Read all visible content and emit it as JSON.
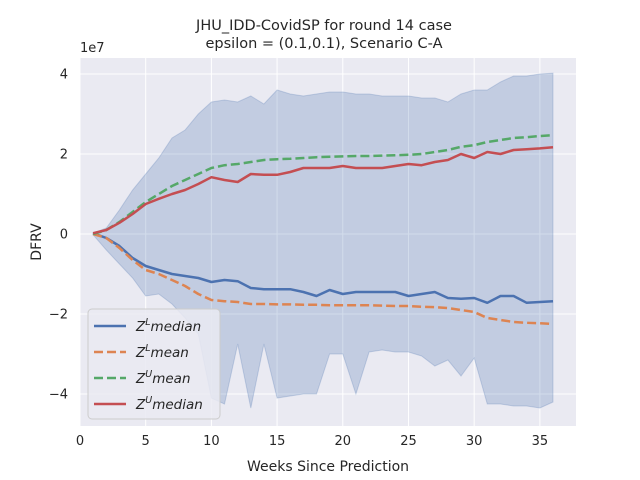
{
  "chart_data": {
    "type": "line",
    "title": "JHU_IDD-CovidSP for round 14 case",
    "subtitle": "epsilon = (0.1,0.1), Scenario C-A",
    "xlabel": "Weeks Since Prediction",
    "ylabel": "DFRV",
    "y_scale_label": "1e7",
    "xlim": [
      0,
      37.75
    ],
    "ylim": [
      -4.8,
      4.4
    ],
    "x_ticks": [
      0,
      5,
      10,
      15,
      20,
      25,
      30,
      35
    ],
    "y_ticks": [
      -4,
      -2,
      0,
      2,
      4
    ],
    "y_tick_labels": [
      "−4",
      "−2",
      "0",
      "2",
      "4"
    ],
    "grid": true,
    "legend_position": "lower-left",
    "x": [
      1,
      2,
      3,
      4,
      5,
      6,
      7,
      8,
      9,
      10,
      11,
      12,
      13,
      14,
      15,
      16,
      17,
      18,
      19,
      20,
      21,
      22,
      23,
      24,
      25,
      26,
      27,
      28,
      29,
      30,
      31,
      32,
      33,
      34,
      35,
      36
    ],
    "band": {
      "color": "#4c72b0",
      "upper": [
        0.02,
        0.15,
        0.6,
        1.1,
        1.5,
        1.9,
        2.4,
        2.6,
        3.0,
        3.3,
        3.35,
        3.3,
        3.45,
        3.25,
        3.6,
        3.5,
        3.45,
        3.5,
        3.55,
        3.55,
        3.5,
        3.5,
        3.45,
        3.45,
        3.45,
        3.4,
        3.4,
        3.3,
        3.5,
        3.6,
        3.6,
        3.8,
        3.95,
        3.95,
        4.0,
        4.02
      ],
      "lower": [
        -0.02,
        -0.4,
        -0.75,
        -1.1,
        -1.55,
        -1.5,
        -1.75,
        -2.1,
        -2.5,
        -4.1,
        -4.25,
        -2.75,
        -4.35,
        -2.75,
        -4.1,
        -4.05,
        -4.0,
        -4.0,
        -3.0,
        -3.0,
        -4.0,
        -2.95,
        -2.9,
        -2.95,
        -2.95,
        -3.05,
        -3.3,
        -3.15,
        -3.55,
        -3.1,
        -4.25,
        -4.25,
        -4.3,
        -4.3,
        -4.35,
        -4.2
      ]
    },
    "series": [
      {
        "name": "Z^L median",
        "name_base": "Z",
        "name_sup": "L",
        "name_rest": "median",
        "color": "#4c72b0",
        "dash": "solid",
        "values": [
          0.02,
          -0.1,
          -0.3,
          -0.6,
          -0.8,
          -0.9,
          -1.0,
          -1.05,
          -1.1,
          -1.2,
          -1.15,
          -1.18,
          -1.35,
          -1.38,
          -1.38,
          -1.38,
          -1.45,
          -1.55,
          -1.4,
          -1.5,
          -1.45,
          -1.45,
          -1.45,
          -1.45,
          -1.55,
          -1.5,
          -1.45,
          -1.6,
          -1.62,
          -1.6,
          -1.72,
          -1.55,
          -1.55,
          -1.72,
          -1.7,
          -1.68
        ]
      },
      {
        "name": "Z^L mean",
        "name_base": "Z",
        "name_sup": "L",
        "name_rest": "mean",
        "color": "#dd8452",
        "dash": "dashed",
        "values": [
          0.0,
          -0.1,
          -0.35,
          -0.65,
          -0.9,
          -1.0,
          -1.15,
          -1.3,
          -1.5,
          -1.65,
          -1.68,
          -1.7,
          -1.75,
          -1.75,
          -1.76,
          -1.76,
          -1.77,
          -1.77,
          -1.78,
          -1.78,
          -1.78,
          -1.78,
          -1.79,
          -1.8,
          -1.8,
          -1.82,
          -1.83,
          -1.85,
          -1.9,
          -1.95,
          -2.1,
          -2.15,
          -2.2,
          -2.22,
          -2.23,
          -2.25
        ]
      },
      {
        "name": "Z^U mean",
        "name_base": "Z",
        "name_sup": "U",
        "name_rest": "mean",
        "color": "#55a868",
        "dash": "dashed",
        "values": [
          0.0,
          0.1,
          0.3,
          0.55,
          0.8,
          1.0,
          1.2,
          1.35,
          1.5,
          1.65,
          1.72,
          1.75,
          1.8,
          1.85,
          1.87,
          1.88,
          1.9,
          1.92,
          1.93,
          1.94,
          1.95,
          1.95,
          1.96,
          1.97,
          1.98,
          2.0,
          2.05,
          2.1,
          2.18,
          2.22,
          2.3,
          2.35,
          2.4,
          2.42,
          2.45,
          2.47
        ]
      },
      {
        "name": "Z^U median",
        "name_base": "Z",
        "name_sup": "U",
        "name_rest": "median",
        "color": "#c44e52",
        "dash": "solid",
        "values": [
          0.02,
          0.1,
          0.28,
          0.5,
          0.75,
          0.88,
          1.0,
          1.1,
          1.25,
          1.42,
          1.35,
          1.3,
          1.5,
          1.48,
          1.48,
          1.55,
          1.65,
          1.65,
          1.65,
          1.7,
          1.65,
          1.65,
          1.65,
          1.7,
          1.75,
          1.72,
          1.8,
          1.85,
          2.0,
          1.9,
          2.05,
          2.0,
          2.1,
          2.12,
          2.14,
          2.17
        ]
      }
    ]
  }
}
